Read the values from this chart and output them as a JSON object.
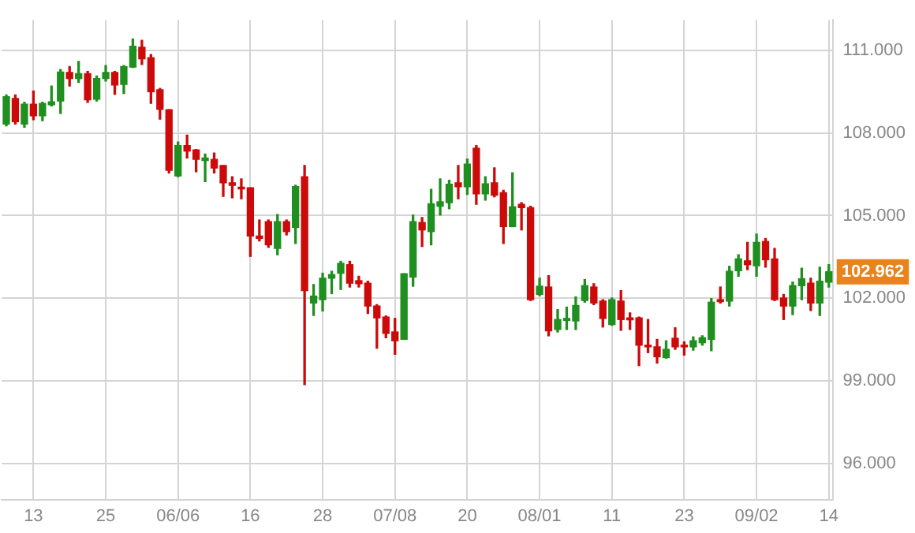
{
  "chart_data": {
    "type": "candlestick",
    "categories": [
      null,
      null,
      null,
      "13",
      null,
      null,
      null,
      null,
      null,
      null,
      null,
      "25",
      null,
      null,
      null,
      null,
      null,
      null,
      null,
      "06/06",
      null,
      null,
      null,
      null,
      null,
      null,
      null,
      "16",
      null,
      null,
      null,
      null,
      null,
      null,
      null,
      "28",
      null,
      null,
      null,
      null,
      null,
      null,
      null,
      "07/08",
      null,
      null,
      null,
      null,
      null,
      null,
      null,
      "20",
      null,
      null,
      null,
      null,
      null,
      null,
      null,
      "08/01",
      null,
      null,
      null,
      null,
      null,
      null,
      null,
      "11",
      null,
      null,
      null,
      null,
      null,
      null,
      null,
      "23",
      null,
      null,
      null,
      null,
      null,
      null,
      null,
      "09/02",
      null,
      null,
      null,
      null,
      null,
      null,
      null,
      "14"
    ],
    "ohlc": [
      [
        108.32,
        109.38,
        108.26,
        109.31
      ],
      [
        109.25,
        109.38,
        108.32,
        108.41
      ],
      [
        108.32,
        109.11,
        108.21,
        109.04
      ],
      [
        109.04,
        109.52,
        108.48,
        108.62
      ],
      [
        108.62,
        109.11,
        108.44,
        109.07
      ],
      [
        109.02,
        109.7,
        108.98,
        109.13
      ],
      [
        109.16,
        110.3,
        108.71,
        110.21
      ],
      [
        110.19,
        110.41,
        109.7,
        109.97
      ],
      [
        109.97,
        110.59,
        109.83,
        110.15
      ],
      [
        110.15,
        110.23,
        109.11,
        109.2
      ],
      [
        109.22,
        110.06,
        109.16,
        109.97
      ],
      [
        109.97,
        110.44,
        109.88,
        110.19
      ],
      [
        110.19,
        110.23,
        109.4,
        109.74
      ],
      [
        109.76,
        110.44,
        109.43,
        110.41
      ],
      [
        110.39,
        111.41,
        110.37,
        111.14
      ],
      [
        111.11,
        111.36,
        110.48,
        110.69
      ],
      [
        110.73,
        110.84,
        109.07,
        109.49
      ],
      [
        109.56,
        109.61,
        108.5,
        108.86
      ],
      [
        108.84,
        108.84,
        106.55,
        106.64
      ],
      [
        106.44,
        107.67,
        106.41,
        107.54
      ],
      [
        107.54,
        107.92,
        107.09,
        107.34
      ],
      [
        107.38,
        107.4,
        106.59,
        107.04
      ],
      [
        107.0,
        107.23,
        106.23,
        107.09
      ],
      [
        107.04,
        107.27,
        106.55,
        106.73
      ],
      [
        106.82,
        106.82,
        105.7,
        106.19
      ],
      [
        106.19,
        106.41,
        105.65,
        106.1
      ],
      [
        106.03,
        106.33,
        105.61,
        105.97
      ],
      [
        106.01,
        106.01,
        103.52,
        104.26
      ],
      [
        104.26,
        104.84,
        104.08,
        104.17
      ],
      [
        104.78,
        104.84,
        103.85,
        103.94
      ],
      [
        103.81,
        105.04,
        103.58,
        104.78
      ],
      [
        104.78,
        104.84,
        104.3,
        104.42
      ],
      [
        104.57,
        106.1,
        103.99,
        106.05
      ],
      [
        106.41,
        106.82,
        98.87,
        102.28
      ],
      [
        101.83,
        102.5,
        101.38,
        102.08
      ],
      [
        101.95,
        102.91,
        101.54,
        102.73
      ],
      [
        102.73,
        102.98,
        102.17,
        102.86
      ],
      [
        102.91,
        103.34,
        102.32,
        103.27
      ],
      [
        103.22,
        103.34,
        102.41,
        102.55
      ],
      [
        102.64,
        102.8,
        102.41,
        102.53
      ],
      [
        102.55,
        102.62,
        101.45,
        101.72
      ],
      [
        101.72,
        101.77,
        100.19,
        101.29
      ],
      [
        101.32,
        101.36,
        100.57,
        100.73
      ],
      [
        100.78,
        101.27,
        99.97,
        100.46
      ],
      [
        100.51,
        102.89,
        100.51,
        102.89
      ],
      [
        102.77,
        105.02,
        102.44,
        104.78
      ],
      [
        104.75,
        104.93,
        103.88,
        104.48
      ],
      [
        104.42,
        105.95,
        103.94,
        105.43
      ],
      [
        105.34,
        106.33,
        105.02,
        105.5
      ],
      [
        105.47,
        106.28,
        105.25,
        106.14
      ],
      [
        106.19,
        106.82,
        105.61,
        106.05
      ],
      [
        106.05,
        107.05,
        105.77,
        106.87
      ],
      [
        107.45,
        107.54,
        105.41,
        105.79
      ],
      [
        105.79,
        106.41,
        105.56,
        106.15
      ],
      [
        106.19,
        106.73,
        105.68,
        105.74
      ],
      [
        105.83,
        105.92,
        103.99,
        104.6
      ],
      [
        104.6,
        106.55,
        104.6,
        105.32
      ],
      [
        105.41,
        105.47,
        104.48,
        105.29
      ],
      [
        105.29,
        105.34,
        101.92,
        101.95
      ],
      [
        102.14,
        102.73,
        102.1,
        102.44
      ],
      [
        102.41,
        102.82,
        100.64,
        100.82
      ],
      [
        100.87,
        101.59,
        100.78,
        101.23
      ],
      [
        101.2,
        101.68,
        100.87,
        101.27
      ],
      [
        101.18,
        102.05,
        100.87,
        101.74
      ],
      [
        101.92,
        102.68,
        101.86,
        102.46
      ],
      [
        102.41,
        102.53,
        101.77,
        101.83
      ],
      [
        101.9,
        101.95,
        100.96,
        101.27
      ],
      [
        101.05,
        102.01,
        101.02,
        101.95
      ],
      [
        101.9,
        102.28,
        100.84,
        101.23
      ],
      [
        101.29,
        101.47,
        100.87,
        101.22
      ],
      [
        101.29,
        101.32,
        99.56,
        100.3
      ],
      [
        100.3,
        101.23,
        100.03,
        100.24
      ],
      [
        100.24,
        100.51,
        99.65,
        99.88
      ],
      [
        99.85,
        100.46,
        99.83,
        100.15
      ],
      [
        100.55,
        100.93,
        100.15,
        100.24
      ],
      [
        100.3,
        100.42,
        99.94,
        100.24
      ],
      [
        100.24,
        100.6,
        100.12,
        100.46
      ],
      [
        100.39,
        100.64,
        100.3,
        100.57
      ],
      [
        100.51,
        101.99,
        100.1,
        101.86
      ],
      [
        101.95,
        102.41,
        101.83,
        101.88
      ],
      [
        101.9,
        103.16,
        101.72,
        102.98
      ],
      [
        103.0,
        103.58,
        102.8,
        103.43
      ],
      [
        103.36,
        104.03,
        103.04,
        103.22
      ],
      [
        103.18,
        104.33,
        102.8,
        104.03
      ],
      [
        104.06,
        104.17,
        103.13,
        103.4
      ],
      [
        103.43,
        103.81,
        101.92,
        101.95
      ],
      [
        102.01,
        102.14,
        101.23,
        101.72
      ],
      [
        101.72,
        102.59,
        101.41,
        102.46
      ],
      [
        102.46,
        103.09,
        101.95,
        102.71
      ],
      [
        102.55,
        102.73,
        101.56,
        101.83
      ],
      [
        101.83,
        103.13,
        101.38,
        102.62
      ],
      [
        102.59,
        103.22,
        102.41,
        102.962
      ]
    ],
    "colors": [
      "#1f8f1f",
      "#cc0a0a",
      "#1f8f1f",
      "#cc0a0a",
      "#1f8f1f",
      "#1f8f1f",
      "#1f8f1f",
      "#cc0a0a",
      "#1f8f1f",
      "#cc0a0a",
      "#1f8f1f",
      "#1f8f1f",
      "#cc0a0a",
      "#1f8f1f",
      "#1f8f1f",
      "#cc0a0a",
      "#cc0a0a",
      "#cc0a0a",
      "#cc0a0a",
      "#1f8f1f",
      "#cc0a0a",
      "#cc0a0a",
      "#1f8f1f",
      "#cc0a0a",
      "#cc0a0a",
      "#cc0a0a",
      "#cc0a0a",
      "#cc0a0a",
      "#cc0a0a",
      "#cc0a0a",
      "#1f8f1f",
      "#cc0a0a",
      "#1f8f1f",
      "#cc0a0a",
      "#1f8f1f",
      "#1f8f1f",
      "#1f8f1f",
      "#1f8f1f",
      "#cc0a0a",
      "#cc0a0a",
      "#cc0a0a",
      "#cc0a0a",
      "#cc0a0a",
      "#cc0a0a",
      "#1f8f1f",
      "#1f8f1f",
      "#cc0a0a",
      "#1f8f1f",
      "#1f8f1f",
      "#1f8f1f",
      "#cc0a0a",
      "#1f8f1f",
      "#cc0a0a",
      "#1f8f1f",
      "#cc0a0a",
      "#cc0a0a",
      "#1f8f1f",
      "#cc0a0a",
      "#cc0a0a",
      "#1f8f1f",
      "#cc0a0a",
      "#1f8f1f",
      "#1f8f1f",
      "#1f8f1f",
      "#1f8f1f",
      "#cc0a0a",
      "#cc0a0a",
      "#1f8f1f",
      "#cc0a0a",
      "#cc0a0a",
      "#cc0a0a",
      "#cc0a0a",
      "#cc0a0a",
      "#1f8f1f",
      "#cc0a0a",
      "#cc0a0a",
      "#1f8f1f",
      "#1f8f1f",
      "#1f8f1f",
      "#cc0a0a",
      "#1f8f1f",
      "#1f8f1f",
      "#cc0a0a",
      "#1f8f1f",
      "#cc0a0a",
      "#cc0a0a",
      "#cc0a0a",
      "#1f8f1f",
      "#1f8f1f",
      "#cc0a0a",
      "#1f8f1f",
      "#1f8f1f"
    ],
    "ylim": [
      94.7,
      112.1
    ],
    "yticks": [
      {
        "value": 96,
        "label": "96.000"
      },
      {
        "value": 99,
        "label": "99.000"
      },
      {
        "value": 102,
        "label": "102.000"
      },
      {
        "value": 105,
        "label": "105.000"
      },
      {
        "value": 108,
        "label": "108.000"
      },
      {
        "value": 111,
        "label": "111.000"
      }
    ],
    "grid": true,
    "annotations": [
      {
        "text": "102.962",
        "x": "14",
        "y": 102.962
      }
    ]
  }
}
